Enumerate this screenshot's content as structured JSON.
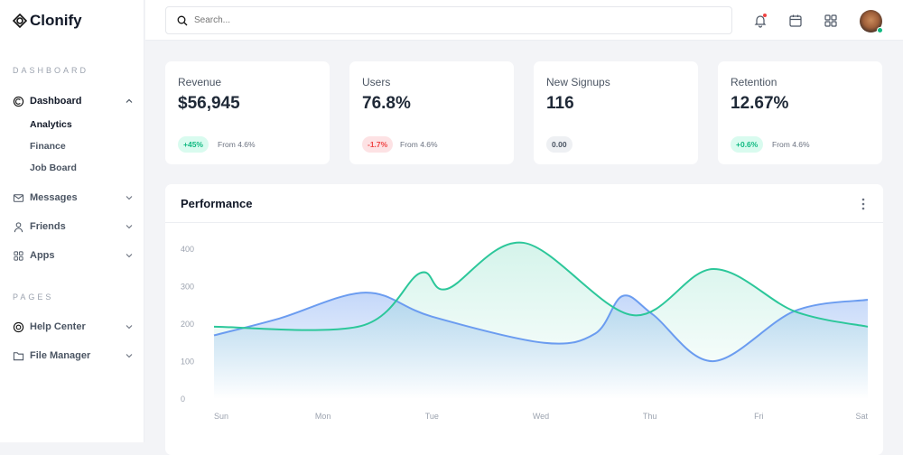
{
  "brand": {
    "name": "Clonify"
  },
  "sidebar": {
    "sections": [
      "DASHBOARD",
      "PAGES"
    ],
    "dashboard": {
      "label": "Dashboard",
      "sub": [
        "Analytics",
        "Finance",
        "Job Board"
      ]
    },
    "items": [
      {
        "label": "Messages",
        "icon": "mail-icon"
      },
      {
        "label": "Friends",
        "icon": "user-icon"
      },
      {
        "label": "Apps",
        "icon": "grid-icon"
      },
      {
        "label": "Help Center",
        "icon": "lifebuoy-icon"
      },
      {
        "label": "File Manager",
        "icon": "folder-icon"
      }
    ]
  },
  "topbar": {
    "search_placeholder": "Search...",
    "notification_dot": "#ef4444",
    "online_dot": "#10b981"
  },
  "stats": [
    {
      "label": "Revenue",
      "value": "$56,945",
      "badge": "+45%",
      "badge_type": "positive",
      "from": "From 4.6%"
    },
    {
      "label": "Users",
      "value": "76.8%",
      "badge": "-1.7%",
      "badge_type": "negative",
      "from": "From 4.6%"
    },
    {
      "label": "New Signups",
      "value": "116",
      "badge": "0.00",
      "badge_type": "neutral",
      "from": ""
    },
    {
      "label": "Retention",
      "value": "12.67%",
      "badge": "+0.6%",
      "badge_type": "positive",
      "from": "From 4.6%"
    }
  ],
  "performance": {
    "title": "Performance"
  },
  "chart_data": {
    "type": "area",
    "categories": [
      "Sun",
      "Mon",
      "Tue",
      "Wed",
      "Thu",
      "Fri",
      "Sat"
    ],
    "ylim": [
      0,
      400
    ],
    "yticks": [
      0,
      100,
      200,
      300,
      400
    ],
    "grid": false,
    "series": [
      {
        "color": "#6b9cf0",
        "points": [
          [
            0,
            170
          ],
          [
            0.6,
            215
          ],
          [
            1.39,
            284
          ],
          [
            2,
            220
          ],
          [
            3.03,
            150
          ],
          [
            3.5,
            175
          ],
          [
            3.75,
            275
          ],
          [
            4.03,
            225
          ],
          [
            4.58,
            101
          ],
          [
            5.33,
            235
          ],
          [
            6,
            265
          ]
        ]
      },
      {
        "color": "#2cc79a",
        "points": [
          [
            0,
            193
          ],
          [
            1.35,
            195
          ],
          [
            1.89,
            336
          ],
          [
            2.14,
            294
          ],
          [
            2.84,
            417
          ],
          [
            3.84,
            224
          ],
          [
            4.58,
            347
          ],
          [
            5.33,
            234
          ],
          [
            6,
            193
          ]
        ]
      }
    ]
  }
}
